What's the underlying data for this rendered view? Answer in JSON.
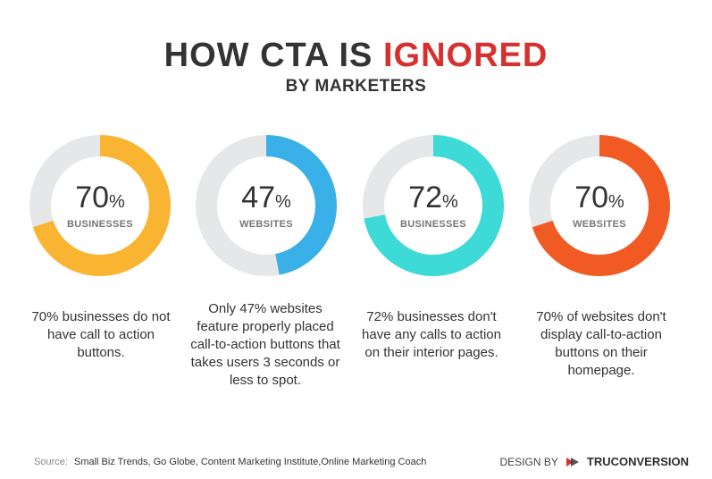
{
  "header": {
    "title_part1": "HOW CTA IS",
    "title_part2": "IGNORED",
    "subtitle": "BY MARKETERS"
  },
  "chart_data": [
    {
      "type": "pie",
      "value": 70,
      "unit": "%",
      "label": "BUSINESSES",
      "color": "#f9b531",
      "track_color": "#e6e7e8",
      "description": "70% businesses do not have call to action buttons."
    },
    {
      "type": "pie",
      "value": 47,
      "unit": "%",
      "label": "WEBSITES",
      "color": "#3ab0e8",
      "track_color": "#e6e7e8",
      "description": "Only 47% websites feature properly placed call-to-action buttons that takes users 3 seconds or less to spot."
    },
    {
      "type": "pie",
      "value": 72,
      "unit": "%",
      "label": "BUSINESSES",
      "color": "#3ddad8",
      "track_color": "#e6e7e8",
      "description": "72% businesses don't have any calls to action on their interior pages."
    },
    {
      "type": "pie",
      "value": 70,
      "unit": "%",
      "label": "WEBSITES",
      "color": "#f25a24",
      "track_color": "#e6e7e8",
      "description": "70% of websites don't display call-to-action buttons on their homepage."
    }
  ],
  "footer": {
    "source_label": "Source:",
    "source_text": "Small Biz Trends, Go Globe, Content Marketing Institute,Online Marketing Coach",
    "credit_label": "DESIGN BY",
    "credit_brand": "TRUCONVERSION",
    "logo_icon": "truconversion-logo-icon"
  }
}
